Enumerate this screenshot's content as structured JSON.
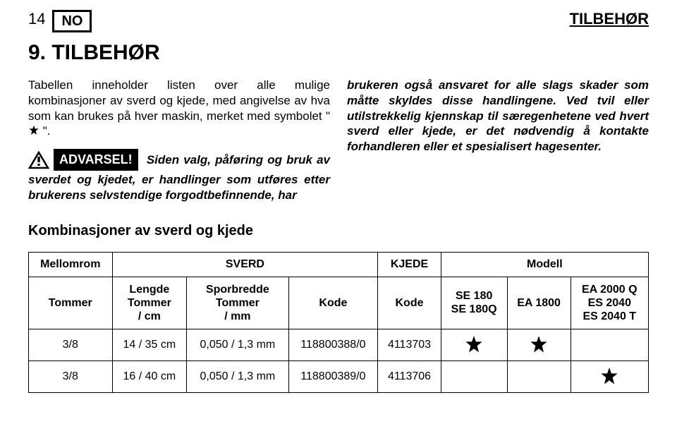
{
  "header": {
    "page_number": "14",
    "lang_code": "NO",
    "right_title": "TILBEHØR"
  },
  "section_title": "9. TILBEHØR",
  "left_col": {
    "intro": "Tabellen inneholder listen over alle mulige kombinasjoner av sverd og kjede, med angivelse av hva som kan brukes på hver maskin, merket med symbolet \"",
    "intro_tail": "\".",
    "warning_label": "ADVARSEL!",
    "warning_text": "Siden valg, påføring og bruk av sverdet og kjedet, er handlinger som utføres etter brukerens selvstendige forgodtbefinnende, har"
  },
  "right_col": {
    "text": "brukeren også ansvaret for alle slags skader som måtte skyldes disse handlingene. Ved tvil eller utilstrekkelig kjennskap til særegenhetene ved hvert sverd eller kjede, er det nødvendig å kontakte forhandleren eller et spesialisert hagesenter."
  },
  "subheader": "Kombinasjoner av sverd og kjede",
  "table": {
    "group_headers": [
      "Mellomrom",
      "SVERD",
      "KJEDE",
      "Modell"
    ],
    "sub_headers": {
      "c0": "Tommer",
      "c1_l1": "Lengde",
      "c1_l2": "Tommer",
      "c1_l3": "/ cm",
      "c2_l1": "Sporbredde",
      "c2_l2": "Tommer",
      "c2_l3": "/ mm",
      "c3": "Kode",
      "c4": "Kode",
      "c5_l1": "SE 180",
      "c5_l2": "SE 180Q",
      "c6": "EA 1800",
      "c7_l1": "EA 2000 Q",
      "c7_l2": "ES 2040",
      "c7_l3": "ES 2040 T"
    },
    "rows": [
      {
        "pitch": "3/8",
        "length": "14 / 35 cm",
        "gauge": "0,050 / 1,3 mm",
        "bar_code": "118800388/0",
        "chain_code": "4113703",
        "m1": true,
        "m2": true,
        "m3": false
      },
      {
        "pitch": "3/8",
        "length": "16 / 40 cm",
        "gauge": "0,050 / 1,3 mm",
        "bar_code": "118800389/0",
        "chain_code": "4113706",
        "m1": false,
        "m2": false,
        "m3": true
      }
    ]
  },
  "style": {
    "star_fill": "#000000",
    "triangle_stroke": "#000000"
  }
}
